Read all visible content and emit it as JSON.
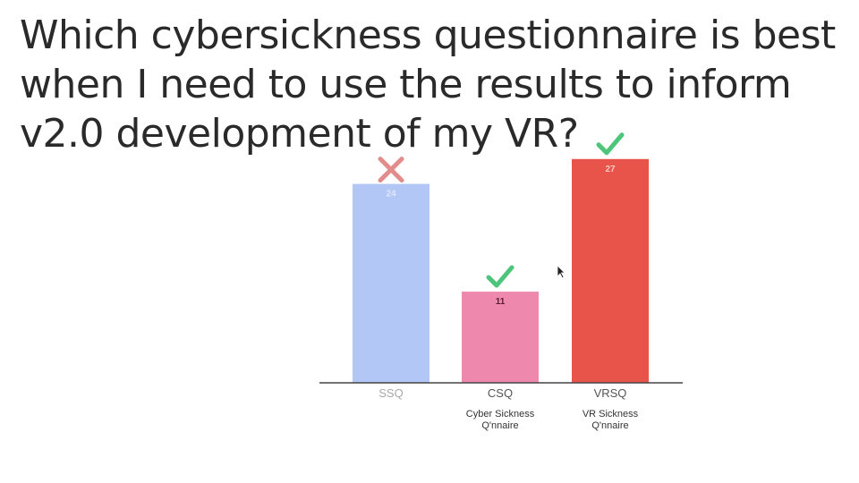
{
  "page": {
    "title": "Which cybersickness questionnaire is best when I need to use the results to inform v2.0 development of my VR?"
  },
  "chart_data": {
    "type": "bar",
    "categories": [
      "SSQ",
      "CSQ",
      "VRSQ"
    ],
    "values": [
      24,
      11,
      27
    ],
    "subtitles": [
      "",
      "Cyber Sickness\nQ'nnaire",
      "VR Sickness\nQ'nnaire"
    ],
    "colors": [
      "#b3c7f7",
      "#ee88ad",
      "#e8544a"
    ],
    "value_label_colors": [
      "#dfe7fb",
      "#5a2035",
      "#f5c8c3"
    ],
    "category_label_colors": [
      "#a8a8a8",
      "#555555",
      "#555555"
    ],
    "marks": [
      "cross",
      "check",
      "check"
    ],
    "mark_colors": {
      "cross": "#e28c8c",
      "check": "#4dc57a"
    },
    "ylim": [
      0,
      30
    ],
    "title": "",
    "xlabel": "",
    "ylabel": "",
    "grid": false,
    "legend": "none"
  }
}
